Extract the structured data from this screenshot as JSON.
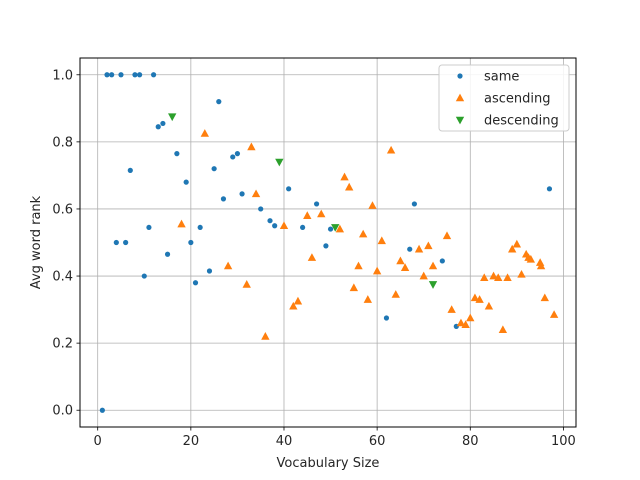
{
  "chart_data": {
    "type": "scatter",
    "title": "",
    "xlabel": "Vocabulary Size",
    "ylabel": "Avg word rank",
    "xlim": [
      -3.8,
      102.7
    ],
    "ylim": [
      -0.05,
      1.05
    ],
    "xticks": [
      0,
      20,
      40,
      60,
      80,
      100
    ],
    "yticks": [
      0.0,
      0.2,
      0.4,
      0.6,
      0.8,
      1.0
    ],
    "xtick_labels": [
      "0",
      "20",
      "40",
      "60",
      "80",
      "100"
    ],
    "ytick_labels": [
      "0.0",
      "0.2",
      "0.4",
      "0.6",
      "0.8",
      "1.0"
    ],
    "grid": true,
    "legend_position": "top-right",
    "series": [
      {
        "name": "same",
        "marker": "circle",
        "color": "#1f77b4",
        "points": [
          [
            1,
            0.0
          ],
          [
            2,
            1.0
          ],
          [
            3,
            1.0
          ],
          [
            5,
            1.0
          ],
          [
            8,
            1.0
          ],
          [
            9,
            1.0
          ],
          [
            12,
            1.0
          ],
          [
            4,
            0.5
          ],
          [
            6,
            0.5
          ],
          [
            7,
            0.715
          ],
          [
            10,
            0.4
          ],
          [
            11,
            0.545
          ],
          [
            13,
            0.845
          ],
          [
            14,
            0.855
          ],
          [
            15,
            0.465
          ],
          [
            17,
            0.765
          ],
          [
            19,
            0.68
          ],
          [
            20,
            0.5
          ],
          [
            21,
            0.38
          ],
          [
            22,
            0.545
          ],
          [
            24,
            0.415
          ],
          [
            25,
            0.72
          ],
          [
            26,
            0.92
          ],
          [
            27,
            0.63
          ],
          [
            29,
            0.755
          ],
          [
            30,
            0.765
          ],
          [
            31,
            0.645
          ],
          [
            35,
            0.6
          ],
          [
            37,
            0.565
          ],
          [
            38,
            0.55
          ],
          [
            41,
            0.66
          ],
          [
            44,
            0.545
          ],
          [
            47,
            0.615
          ],
          [
            49,
            0.49
          ],
          [
            50,
            0.54
          ],
          [
            62,
            0.275
          ],
          [
            67,
            0.48
          ],
          [
            68,
            0.615
          ],
          [
            74,
            0.445
          ],
          [
            77,
            0.25
          ],
          [
            97,
            0.66
          ]
        ]
      },
      {
        "name": "ascending",
        "marker": "triangle-up",
        "color": "#ff7f0e",
        "points": [
          [
            18,
            0.555
          ],
          [
            23,
            0.825
          ],
          [
            28,
            0.43
          ],
          [
            32,
            0.375
          ],
          [
            33,
            0.785
          ],
          [
            34,
            0.645
          ],
          [
            36,
            0.22
          ],
          [
            40,
            0.55
          ],
          [
            42,
            0.31
          ],
          [
            43,
            0.325
          ],
          [
            45,
            0.58
          ],
          [
            46,
            0.455
          ],
          [
            48,
            0.585
          ],
          [
            52,
            0.54
          ],
          [
            53,
            0.695
          ],
          [
            54,
            0.665
          ],
          [
            55,
            0.365
          ],
          [
            56,
            0.43
          ],
          [
            57,
            0.525
          ],
          [
            58,
            0.33
          ],
          [
            59,
            0.61
          ],
          [
            60,
            0.415
          ],
          [
            61,
            0.505
          ],
          [
            63,
            0.775
          ],
          [
            64,
            0.345
          ],
          [
            65,
            0.445
          ],
          [
            66,
            0.425
          ],
          [
            69,
            0.48
          ],
          [
            70,
            0.4
          ],
          [
            71,
            0.49
          ],
          [
            72,
            0.43
          ],
          [
            75,
            0.52
          ],
          [
            76,
            0.3
          ],
          [
            78,
            0.26
          ],
          [
            79,
            0.255
          ],
          [
            80,
            0.275
          ],
          [
            81,
            0.335
          ],
          [
            82,
            0.33
          ],
          [
            83,
            0.395
          ],
          [
            84,
            0.31
          ],
          [
            85,
            0.4
          ],
          [
            86,
            0.395
          ],
          [
            87,
            0.24
          ],
          [
            88,
            0.395
          ],
          [
            89,
            0.48
          ],
          [
            90,
            0.495
          ],
          [
            91,
            0.405
          ],
          [
            92,
            0.465
          ],
          [
            92.5,
            0.455
          ],
          [
            93,
            0.45
          ],
          [
            95,
            0.44
          ],
          [
            95.2,
            0.43
          ],
          [
            96,
            0.335
          ],
          [
            98,
            0.285
          ]
        ]
      },
      {
        "name": "descending",
        "marker": "triangle-down",
        "color": "#2ca02c",
        "points": [
          [
            16,
            0.875
          ],
          [
            39,
            0.74
          ],
          [
            51,
            0.545
          ],
          [
            72,
            0.375
          ]
        ]
      }
    ]
  }
}
